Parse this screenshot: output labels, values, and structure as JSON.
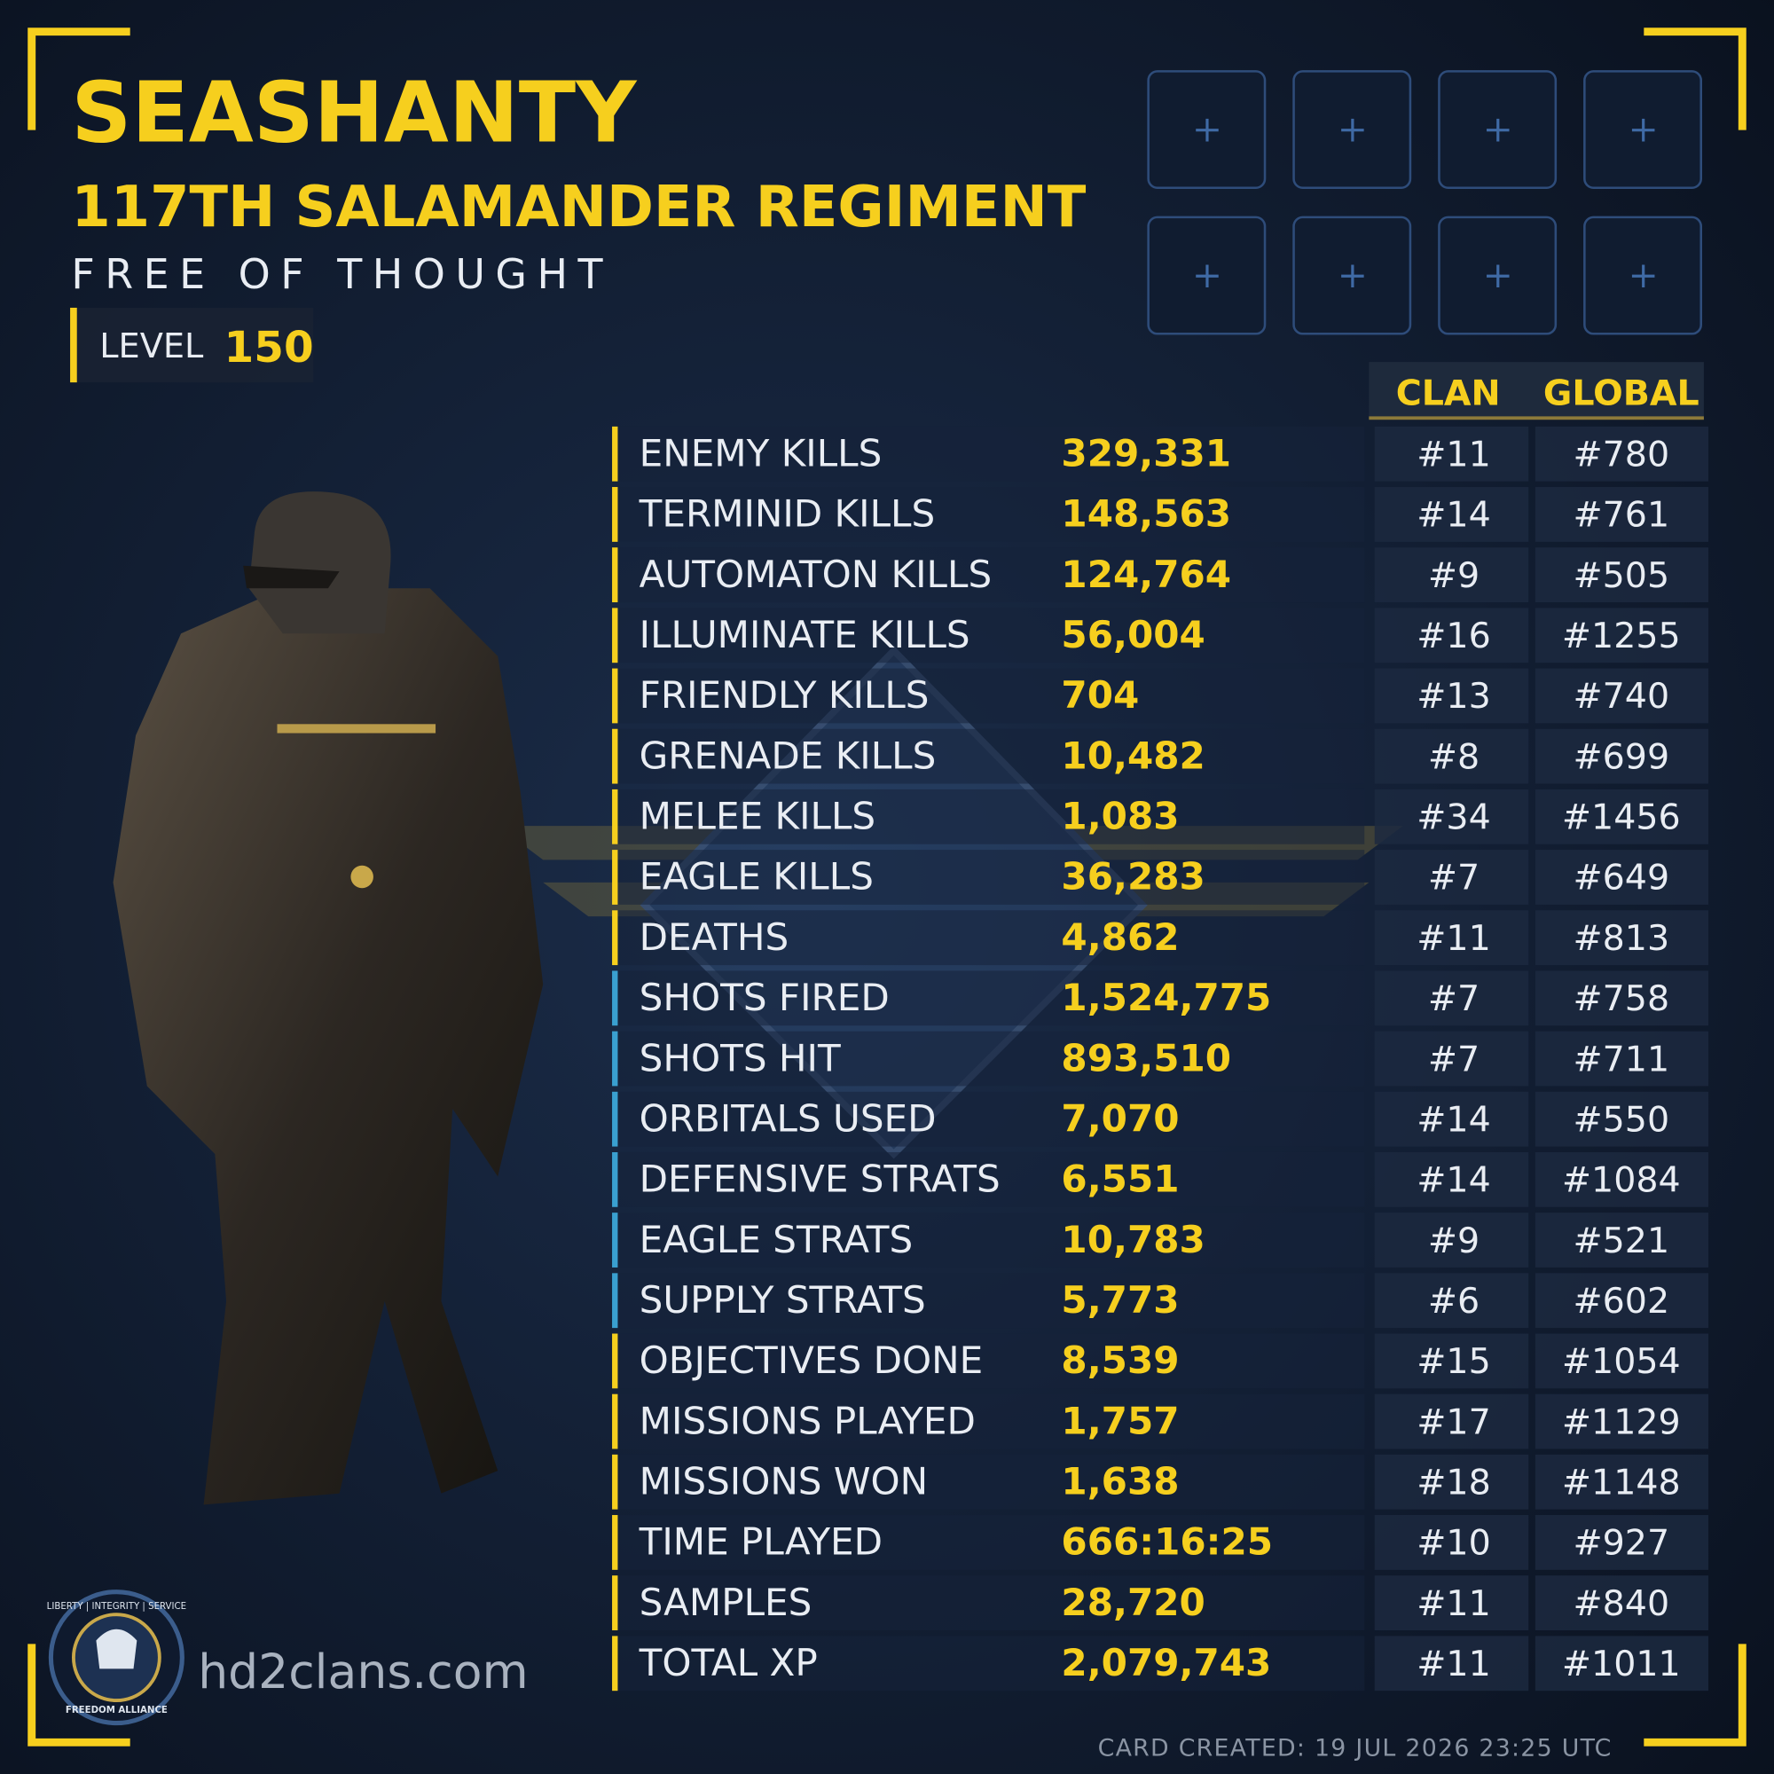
{
  "header": {
    "name": "SEASHANTY",
    "clan": "117TH SALAMANDER REGIMENT",
    "motto": "FREE OF THOUGHT",
    "level_label": "LEVEL",
    "level": "150"
  },
  "table": {
    "columns": [
      "CLAN",
      "GLOBAL"
    ],
    "rows": [
      {
        "label": "ENEMY KILLS",
        "value": "329,331",
        "clan": "#11",
        "global": "#780",
        "accent": "#f6cf1e"
      },
      {
        "label": "TERMINID KILLS",
        "value": "148,563",
        "clan": "#14",
        "global": "#761",
        "accent": "#f6cf1e"
      },
      {
        "label": "AUTOMATON KILLS",
        "value": "124,764",
        "clan": "#9",
        "global": "#505",
        "accent": "#f6cf1e"
      },
      {
        "label": "ILLUMINATE KILLS",
        "value": "56,004",
        "clan": "#16",
        "global": "#1255",
        "accent": "#f6cf1e"
      },
      {
        "label": "FRIENDLY KILLS",
        "value": "704",
        "clan": "#13",
        "global": "#740",
        "accent": "#f6cf1e"
      },
      {
        "label": "GRENADE KILLS",
        "value": "10,482",
        "clan": "#8",
        "global": "#699",
        "accent": "#f6cf1e"
      },
      {
        "label": "MELEE KILLS",
        "value": "1,083",
        "clan": "#34",
        "global": "#1456",
        "accent": "#f6cf1e"
      },
      {
        "label": "EAGLE KILLS",
        "value": "36,283",
        "clan": "#7",
        "global": "#649",
        "accent": "#f6cf1e"
      },
      {
        "label": "DEATHS",
        "value": "4,862",
        "clan": "#11",
        "global": "#813",
        "accent": "#f6cf1e"
      },
      {
        "label": "SHOTS FIRED",
        "value": "1,524,775",
        "clan": "#7",
        "global": "#758",
        "accent": "#3aa0d0"
      },
      {
        "label": "SHOTS HIT",
        "value": "893,510",
        "clan": "#7",
        "global": "#711",
        "accent": "#3aa0d0"
      },
      {
        "label": "ORBITALS USED",
        "value": "7,070",
        "clan": "#14",
        "global": "#550",
        "accent": "#3aa0d0"
      },
      {
        "label": "DEFENSIVE STRATS",
        "value": "6,551",
        "clan": "#14",
        "global": "#1084",
        "accent": "#3aa0d0"
      },
      {
        "label": "EAGLE STRATS",
        "value": "10,783",
        "clan": "#9",
        "global": "#521",
        "accent": "#3aa0d0"
      },
      {
        "label": "SUPPLY STRATS",
        "value": "5,773",
        "clan": "#6",
        "global": "#602",
        "accent": "#3aa0d0"
      },
      {
        "label": "OBJECTIVES DONE",
        "value": "8,539",
        "clan": "#15",
        "global": "#1054",
        "accent": "#f6cf1e"
      },
      {
        "label": "MISSIONS PLAYED",
        "value": "1,757",
        "clan": "#17",
        "global": "#1129",
        "accent": "#f6cf1e"
      },
      {
        "label": "MISSIONS WON",
        "value": "1,638",
        "clan": "#18",
        "global": "#1148",
        "accent": "#f6cf1e"
      },
      {
        "label": "TIME PLAYED",
        "value": "666:16:25",
        "clan": "#10",
        "global": "#927",
        "accent": "#f6cf1e"
      },
      {
        "label": "SAMPLES",
        "value": "28,720",
        "clan": "#11",
        "global": "#840",
        "accent": "#f6cf1e"
      },
      {
        "label": "TOTAL XP",
        "value": "2,079,743",
        "clan": "#11",
        "global": "#1011",
        "accent": "#f6cf1e"
      }
    ]
  },
  "logo": {
    "top": "LIBERTY | INTEGRITY | SERVICE",
    "bottom": "FREEDOM ALLIANCE"
  },
  "footer": {
    "site": "hd2clans.com",
    "created": "CARD CREATED: 19 JUL 2026 23:25 UTC"
  }
}
